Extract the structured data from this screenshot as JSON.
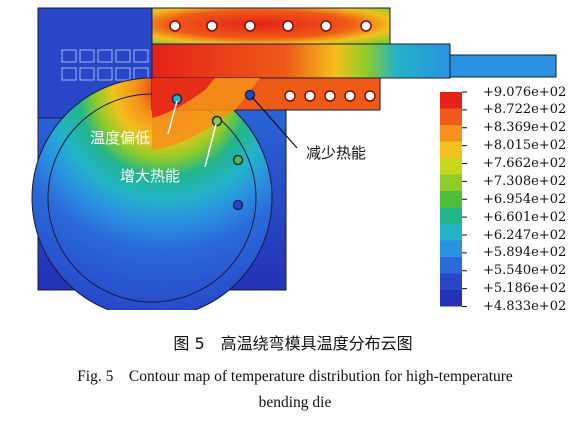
{
  "legend": {
    "values": [
      "+9.076e+02",
      "+8.722e+02",
      "+8.369e+02",
      "+8.015e+02",
      "+7.662e+02",
      "+7.308e+02",
      "+6.954e+02",
      "+6.601e+02",
      "+6.247e+02",
      "+5.894e+02",
      "+5.540e+02",
      "+5.186e+02",
      "+4.833e+02"
    ],
    "colors": [
      "#e52218",
      "#ef5a17",
      "#f5901a",
      "#f2c21c",
      "#c9d61f",
      "#8ecc28",
      "#4fbf3a",
      "#22b58a",
      "#23b3c8",
      "#2a92e0",
      "#2a6ad9",
      "#2746c8",
      "#2431b6"
    ]
  },
  "annotations": {
    "low_temp": "温度偏低",
    "increase_heat": "增大热能",
    "reduce_heat": "减少热能"
  },
  "caption": {
    "cn": "图 5　高温绕弯模具温度分布云图",
    "en_line1": "Fig. 5　Contour map of temperature distribution for high-temperature",
    "en_line2": "bending die"
  }
}
